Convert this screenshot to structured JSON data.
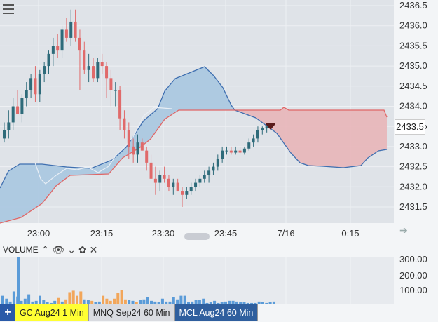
{
  "price_axis": {
    "labels": [
      "2436.5",
      "2436.0",
      "2435.5",
      "2435.0",
      "2434.5",
      "2434.0",
      "2433.5",
      "2433.0",
      "2432.5",
      "2432.0",
      "2431.5"
    ],
    "current_price": "2433.5"
  },
  "time_axis": {
    "labels": [
      "23:00",
      "23:15",
      "23:30",
      "23:45",
      "7/16",
      "0:15"
    ]
  },
  "volume_panel": {
    "title": "VOLUME",
    "labels": [
      "300.00",
      "200.00",
      "100.00"
    ],
    "controls": {
      "up": "⌃",
      "eye": "👁",
      "down": "⌄",
      "gear": "✿",
      "close": "✕"
    }
  },
  "tabs": {
    "add": "+",
    "items": [
      {
        "label": "GC Aug24 1 Min",
        "bg": "#ffff33",
        "fg": "#222"
      },
      {
        "label": "MNQ Sep24 60 Min",
        "bg": "#d9dbe0",
        "fg": "#222"
      },
      {
        "label": "MCL Aug24 60 Min",
        "bg": "#2f5f9e",
        "fg": "#ffffff"
      }
    ]
  },
  "colors": {
    "up": "#2e6b7a",
    "down": "#e06a6a",
    "cloud_blue": "#a9c6e0",
    "cloud_red": "#e8b5b8",
    "vol_blue": "#5a9bd8",
    "vol_orange": "#f2a65a"
  },
  "chart_data": {
    "type": "candlestick",
    "xlabel": "",
    "ylabel": "",
    "ylim": [
      2431.2,
      2436.6
    ],
    "x_ticks": [
      "23:00",
      "23:15",
      "23:30",
      "23:45",
      "7/16",
      "0:15"
    ],
    "note_volume_ylim": [
      0,
      330
    ]
  }
}
